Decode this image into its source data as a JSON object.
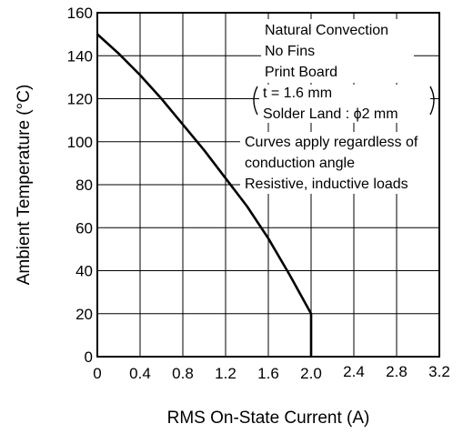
{
  "chart_data": {
    "type": "line",
    "xlabel": "RMS On-State Current  (A)",
    "ylabel": "Ambient Temperature  (°C)",
    "xlim": [
      0,
      3.2
    ],
    "ylim": [
      0,
      160
    ],
    "x_ticks": [
      "0",
      "0.4",
      "0.8",
      "1.2",
      "1.6",
      "2.0",
      "2.4",
      "2.8",
      "3.2"
    ],
    "y_ticks": [
      "0",
      "20",
      "40",
      "60",
      "80",
      "100",
      "120",
      "140",
      "160"
    ],
    "grid": true,
    "series": [
      {
        "x": [
          0,
          0.2,
          0.4,
          0.6,
          0.8,
          1.0,
          1.2,
          1.4,
          1.6,
          1.8,
          2.0,
          2.0
        ],
        "y": [
          150,
          141,
          131,
          120,
          108,
          96,
          83,
          70,
          55,
          38,
          20,
          0
        ]
      }
    ],
    "annotations": {
      "conditions": [
        "Natural Convection",
        "No Fins",
        "Print Board"
      ],
      "board_spec": [
        "t = 1.6 mm",
        "Solder Land : ϕ2 mm"
      ],
      "notes": [
        "Curves apply regardless of",
        "conduction angle",
        "Resistive, inductive loads"
      ]
    }
  }
}
